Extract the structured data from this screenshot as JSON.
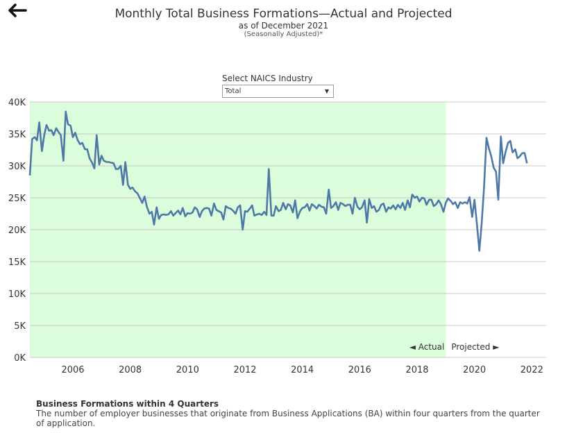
{
  "title": "Monthly Total Business Formations—Actual and Projected",
  "subtitle": "as of December 2021",
  "subnote": "(Seasonally Adjusted)*",
  "selector": {
    "label": "Select NAICS Industry",
    "value": "Total"
  },
  "icons": {
    "back": "arrow-left-icon",
    "dropdown": "caret-down-icon"
  },
  "colors": {
    "line": "#4e79a7",
    "actual_region": "#dcfddc",
    "grid": "#c8c8c8",
    "arrow": "#2e6b3a"
  },
  "annotations": {
    "actual": "◄ Actual",
    "projected": "Projected ►"
  },
  "footer": {
    "title": "Business Formations within 4 Quarters",
    "description": "The number of employer businesses that originate from Business Applications (BA) within four quarters from the quarter of application."
  },
  "chart_data": {
    "type": "line",
    "ylim": [
      0,
      40000
    ],
    "xlim": [
      2004.5,
      2022.5
    ],
    "yticks": [
      0,
      5000,
      10000,
      15000,
      20000,
      25000,
      30000,
      35000,
      40000
    ],
    "ytick_labels": [
      "0K",
      "5K",
      "10K",
      "15K",
      "20K",
      "25K",
      "30K",
      "35K",
      "40K"
    ],
    "xticks": [
      2006,
      2008,
      2010,
      2012,
      2014,
      2016,
      2018,
      2020,
      2022
    ],
    "xtick_labels": [
      "2006",
      "2008",
      "2010",
      "2012",
      "2014",
      "2016",
      "2018",
      "2020",
      "2022"
    ],
    "actual_end": 2019.0,
    "grid": true,
    "series": [
      {
        "points": [
          [
            2004.5,
            28500
          ],
          [
            2004.58,
            34200
          ],
          [
            2004.67,
            34500
          ],
          [
            2004.75,
            34000
          ],
          [
            2004.83,
            36800
          ],
          [
            2004.92,
            32300
          ],
          [
            2005.0,
            34800
          ],
          [
            2005.08,
            36400
          ],
          [
            2005.17,
            35500
          ],
          [
            2005.25,
            35600
          ],
          [
            2005.33,
            34800
          ],
          [
            2005.42,
            35900
          ],
          [
            2005.5,
            35300
          ],
          [
            2005.58,
            34800
          ],
          [
            2005.67,
            30800
          ],
          [
            2005.75,
            38500
          ],
          [
            2005.83,
            36500
          ],
          [
            2005.92,
            36300
          ],
          [
            2006.0,
            34500
          ],
          [
            2006.08,
            35200
          ],
          [
            2006.17,
            34000
          ],
          [
            2006.25,
            33400
          ],
          [
            2006.33,
            33600
          ],
          [
            2006.42,
            32600
          ],
          [
            2006.5,
            32600
          ],
          [
            2006.58,
            31200
          ],
          [
            2006.67,
            30500
          ],
          [
            2006.75,
            29600
          ],
          [
            2006.83,
            34800
          ],
          [
            2006.92,
            30200
          ],
          [
            2007.0,
            31600
          ],
          [
            2007.08,
            30800
          ],
          [
            2007.17,
            30600
          ],
          [
            2007.25,
            30600
          ],
          [
            2007.33,
            30500
          ],
          [
            2007.42,
            30400
          ],
          [
            2007.5,
            29500
          ],
          [
            2007.58,
            29500
          ],
          [
            2007.67,
            30000
          ],
          [
            2007.75,
            27000
          ],
          [
            2007.83,
            30600
          ],
          [
            2007.92,
            27000
          ],
          [
            2008.0,
            26400
          ],
          [
            2008.08,
            26600
          ],
          [
            2008.17,
            26000
          ],
          [
            2008.25,
            25700
          ],
          [
            2008.33,
            25000
          ],
          [
            2008.42,
            24200
          ],
          [
            2008.5,
            25200
          ],
          [
            2008.58,
            23600
          ],
          [
            2008.67,
            22500
          ],
          [
            2008.75,
            22800
          ],
          [
            2008.83,
            20800
          ],
          [
            2008.92,
            23500
          ],
          [
            2009.0,
            21700
          ],
          [
            2009.08,
            22300
          ],
          [
            2009.17,
            22400
          ],
          [
            2009.25,
            22300
          ],
          [
            2009.33,
            22400
          ],
          [
            2009.42,
            22900
          ],
          [
            2009.5,
            22200
          ],
          [
            2009.58,
            22600
          ],
          [
            2009.67,
            23000
          ],
          [
            2009.75,
            22400
          ],
          [
            2009.83,
            23400
          ],
          [
            2009.92,
            22100
          ],
          [
            2010.0,
            22600
          ],
          [
            2010.08,
            22500
          ],
          [
            2010.17,
            22700
          ],
          [
            2010.25,
            23500
          ],
          [
            2010.33,
            23200
          ],
          [
            2010.42,
            22000
          ],
          [
            2010.5,
            22900
          ],
          [
            2010.58,
            23300
          ],
          [
            2010.67,
            23400
          ],
          [
            2010.75,
            23300
          ],
          [
            2010.83,
            22200
          ],
          [
            2010.92,
            24100
          ],
          [
            2011.0,
            23100
          ],
          [
            2011.08,
            22900
          ],
          [
            2011.17,
            22700
          ],
          [
            2011.25,
            21600
          ],
          [
            2011.33,
            23700
          ],
          [
            2011.42,
            23400
          ],
          [
            2011.5,
            23300
          ],
          [
            2011.58,
            23000
          ],
          [
            2011.67,
            22500
          ],
          [
            2011.75,
            23500
          ],
          [
            2011.83,
            23800
          ],
          [
            2011.92,
            20000
          ],
          [
            2012.0,
            22900
          ],
          [
            2012.08,
            22800
          ],
          [
            2012.17,
            23300
          ],
          [
            2012.25,
            23800
          ],
          [
            2012.33,
            22200
          ],
          [
            2012.42,
            22400
          ],
          [
            2012.5,
            22500
          ],
          [
            2012.58,
            22300
          ],
          [
            2012.67,
            22800
          ],
          [
            2012.75,
            22300
          ],
          [
            2012.83,
            29500
          ],
          [
            2012.92,
            22200
          ],
          [
            2013.0,
            22200
          ],
          [
            2013.08,
            23700
          ],
          [
            2013.17,
            22900
          ],
          [
            2013.25,
            23100
          ],
          [
            2013.33,
            24200
          ],
          [
            2013.42,
            23200
          ],
          [
            2013.5,
            24000
          ],
          [
            2013.58,
            23800
          ],
          [
            2013.67,
            22700
          ],
          [
            2013.75,
            24600
          ],
          [
            2013.83,
            21800
          ],
          [
            2013.92,
            22900
          ],
          [
            2014.0,
            23400
          ],
          [
            2014.08,
            23500
          ],
          [
            2014.17,
            24000
          ],
          [
            2014.25,
            23000
          ],
          [
            2014.33,
            24000
          ],
          [
            2014.42,
            23700
          ],
          [
            2014.5,
            23300
          ],
          [
            2014.58,
            23900
          ],
          [
            2014.67,
            23600
          ],
          [
            2014.75,
            23500
          ],
          [
            2014.83,
            22500
          ],
          [
            2014.92,
            26300
          ],
          [
            2015.0,
            23400
          ],
          [
            2015.08,
            23700
          ],
          [
            2015.17,
            24300
          ],
          [
            2015.25,
            23100
          ],
          [
            2015.33,
            24200
          ],
          [
            2015.42,
            24000
          ],
          [
            2015.5,
            23700
          ],
          [
            2015.58,
            23900
          ],
          [
            2015.67,
            23900
          ],
          [
            2015.75,
            22500
          ],
          [
            2015.83,
            25000
          ],
          [
            2015.92,
            23600
          ],
          [
            2016.0,
            23200
          ],
          [
            2016.08,
            23500
          ],
          [
            2016.17,
            24600
          ],
          [
            2016.25,
            21100
          ],
          [
            2016.33,
            24800
          ],
          [
            2016.42,
            23400
          ],
          [
            2016.5,
            23700
          ],
          [
            2016.58,
            22800
          ],
          [
            2016.67,
            23100
          ],
          [
            2016.75,
            23900
          ],
          [
            2016.83,
            24100
          ],
          [
            2016.92,
            22800
          ],
          [
            2017.0,
            23500
          ],
          [
            2017.08,
            23300
          ],
          [
            2017.17,
            23800
          ],
          [
            2017.25,
            23200
          ],
          [
            2017.33,
            23900
          ],
          [
            2017.42,
            23400
          ],
          [
            2017.5,
            24200
          ],
          [
            2017.58,
            23100
          ],
          [
            2017.67,
            24600
          ],
          [
            2017.75,
            23500
          ],
          [
            2017.83,
            25500
          ],
          [
            2017.92,
            25000
          ],
          [
            2018.0,
            25200
          ],
          [
            2018.08,
            24400
          ],
          [
            2018.17,
            25000
          ],
          [
            2018.25,
            24900
          ],
          [
            2018.33,
            23900
          ],
          [
            2018.42,
            24700
          ],
          [
            2018.5,
            24700
          ],
          [
            2018.58,
            23700
          ],
          [
            2018.67,
            24000
          ],
          [
            2018.75,
            24600
          ],
          [
            2018.83,
            24000
          ],
          [
            2018.92,
            22800
          ],
          [
            2019.0,
            24200
          ],
          [
            2019.08,
            24900
          ],
          [
            2019.17,
            24500
          ],
          [
            2019.25,
            24000
          ],
          [
            2019.33,
            24300
          ],
          [
            2019.42,
            23400
          ],
          [
            2019.5,
            24300
          ],
          [
            2019.58,
            24100
          ],
          [
            2019.67,
            24300
          ],
          [
            2019.75,
            24100
          ],
          [
            2019.83,
            25100
          ],
          [
            2019.92,
            22000
          ],
          [
            2020.0,
            24700
          ],
          [
            2020.08,
            21100
          ],
          [
            2020.17,
            16700
          ],
          [
            2020.25,
            20900
          ],
          [
            2020.33,
            26300
          ],
          [
            2020.42,
            34400
          ],
          [
            2020.5,
            32800
          ],
          [
            2020.58,
            31600
          ],
          [
            2020.67,
            29700
          ],
          [
            2020.75,
            29100
          ],
          [
            2020.83,
            24700
          ],
          [
            2020.92,
            34600
          ],
          [
            2021.0,
            30400
          ],
          [
            2021.08,
            32100
          ],
          [
            2021.17,
            33600
          ],
          [
            2021.25,
            33900
          ],
          [
            2021.33,
            32100
          ],
          [
            2021.42,
            32600
          ],
          [
            2021.5,
            31200
          ],
          [
            2021.58,
            31500
          ],
          [
            2021.67,
            32000
          ],
          [
            2021.75,
            32000
          ],
          [
            2021.83,
            30400
          ]
        ]
      }
    ]
  }
}
